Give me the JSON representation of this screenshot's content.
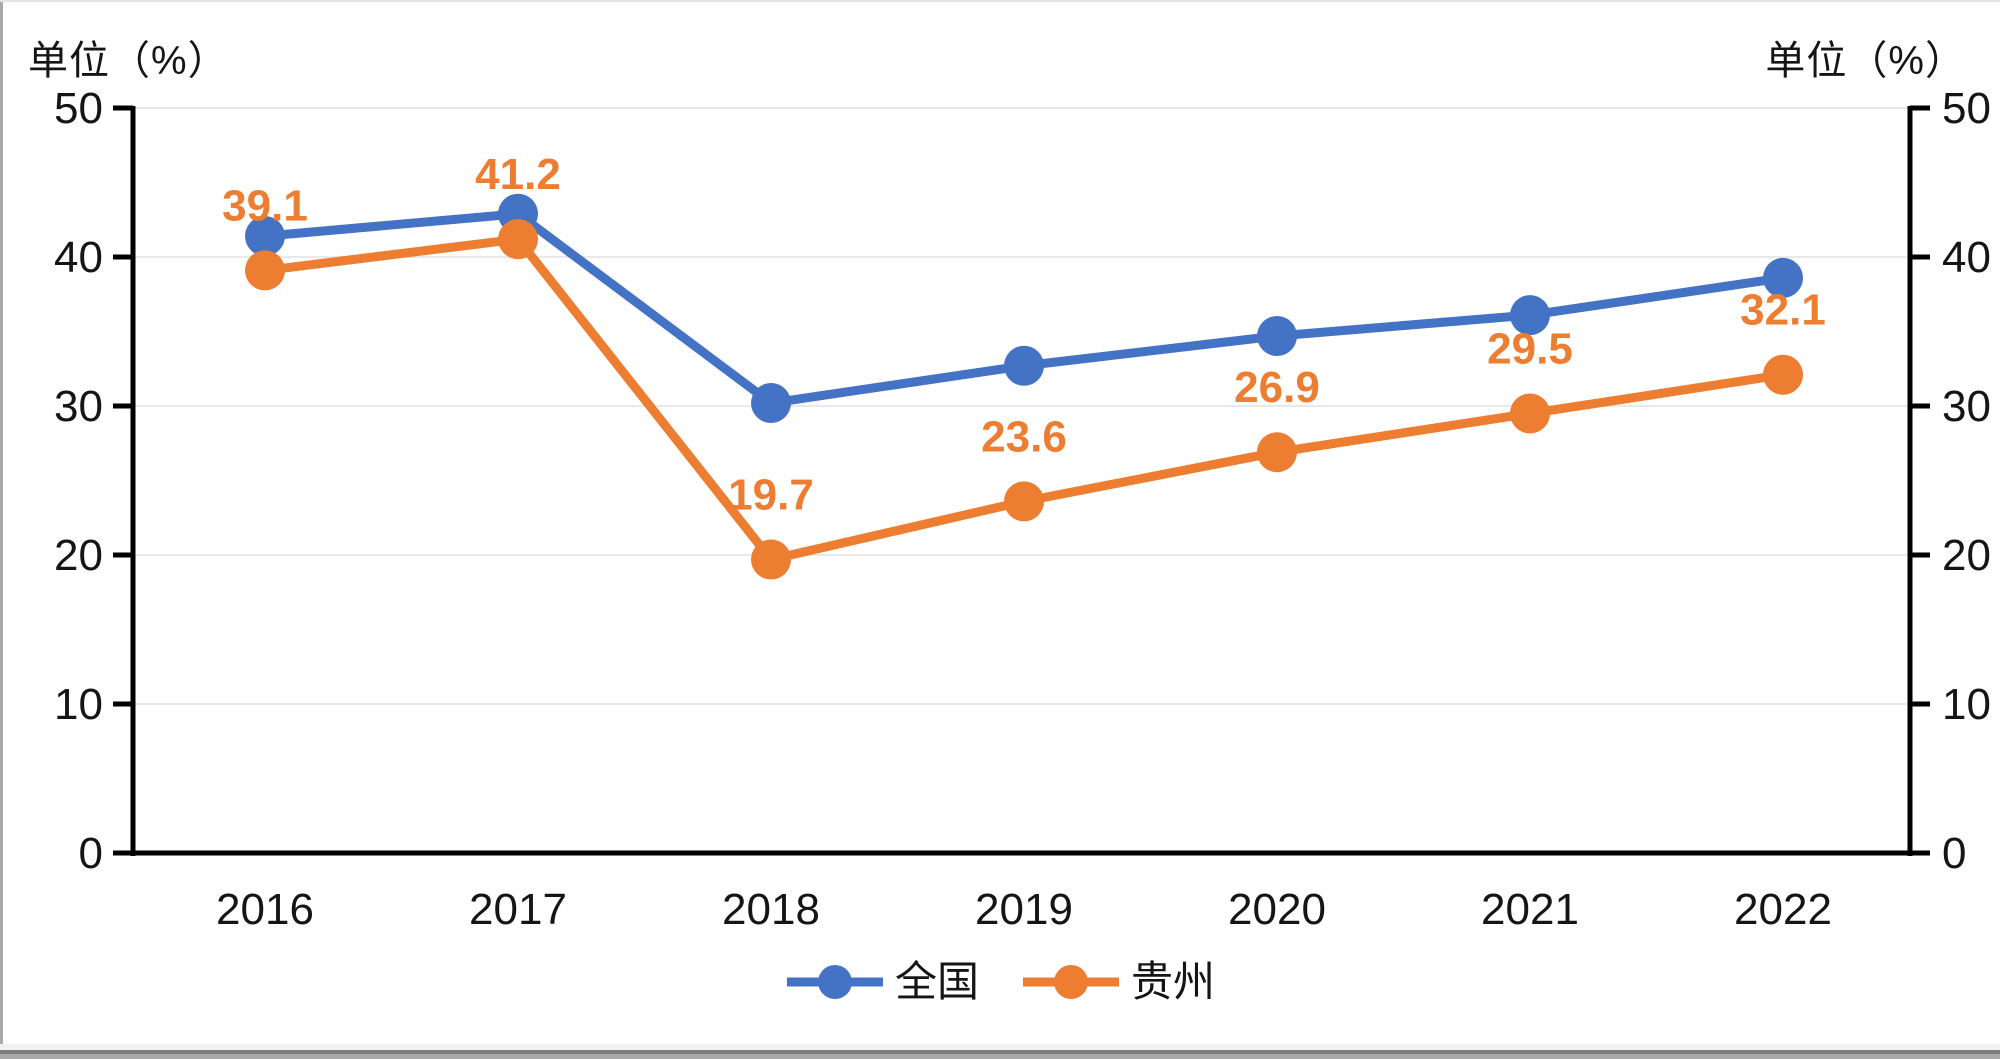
{
  "page": {
    "unit_label_left": "单位（%）",
    "unit_label_right": "单位（%）"
  },
  "chart_data": {
    "type": "line",
    "categories": [
      "2016",
      "2017",
      "2018",
      "2019",
      "2020",
      "2021",
      "2022"
    ],
    "series": [
      {
        "key": "national",
        "name": "全国",
        "color": "#4472C4",
        "values": [
          41.4,
          42.9,
          30.2,
          32.7,
          34.7,
          36.1,
          38.6
        ],
        "labels_visible": false,
        "data_labels": []
      },
      {
        "key": "guizhou",
        "name": "贵州",
        "color": "#ED7D31",
        "values": [
          39.1,
          41.2,
          19.7,
          23.6,
          26.9,
          29.5,
          32.1
        ],
        "labels_visible": true,
        "label_color": "#ED7D31",
        "data_labels": [
          "39.1",
          "41.2",
          "19.7",
          "23.6",
          "26.9",
          "29.5",
          "32.1"
        ]
      }
    ],
    "y_axis_left": {
      "min": 0,
      "max": 50,
      "tick_step": 10,
      "ticks": [
        "0",
        "10",
        "20",
        "30",
        "40",
        "50"
      ],
      "unit": "单位（%）"
    },
    "y_axis_right": {
      "min": 0,
      "max": 50,
      "tick_step": 10,
      "ticks": [
        "0",
        "10",
        "20",
        "30",
        "40",
        "50"
      ],
      "unit": "单位（%）"
    },
    "dual_axis": true,
    "grid": true,
    "gridline_color": "#e9e9e9",
    "axis_color": "#000000",
    "legend_position": "bottom",
    "legend": [
      "全国",
      "贵州"
    ],
    "title": "",
    "xlabel": "",
    "ylabel": "单位（%）"
  }
}
